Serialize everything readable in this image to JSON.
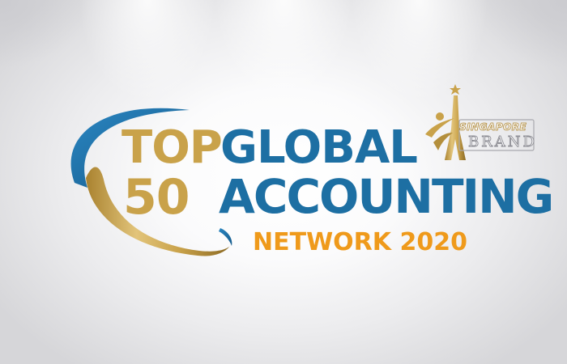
{
  "logo": {
    "top": "TOP",
    "number": "50",
    "global": "GLOBAL",
    "accounting": "ACCOUNTING",
    "network": "NETWORK 2020"
  },
  "brand_badge": {
    "line1": "SINGAPORE",
    "line2": "BRAND"
  },
  "colors": {
    "gold": "#c9a24a",
    "blue": "#1d6fa3",
    "orange": "#ef9a1b",
    "silver": "#8d8d94"
  }
}
